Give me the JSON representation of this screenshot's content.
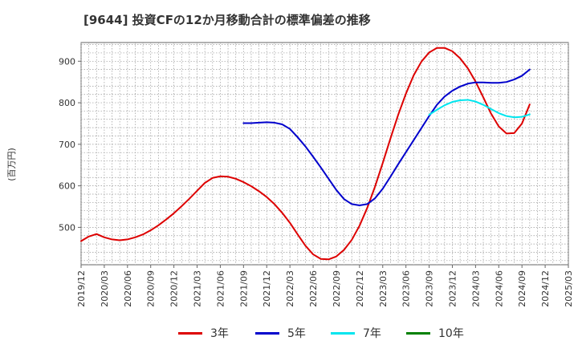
{
  "title": "[9644]  投資CFの12か月移動合計の標準偏差の推移",
  "chart_data": {
    "type": "line",
    "title": "[9644]  投資CFの12か月移動合計の標準偏差の推移",
    "ylabel": "(百万円)",
    "xlabel": "",
    "x_ticks": [
      "2019/12",
      "2020/03",
      "2020/06",
      "2020/09",
      "2020/12",
      "2021/03",
      "2021/06",
      "2021/09",
      "2021/12",
      "2022/03",
      "2022/06",
      "2022/09",
      "2022/12",
      "2023/03",
      "2023/06",
      "2023/09",
      "2023/12",
      "2024/03",
      "2024/06",
      "2024/09",
      "2024/12",
      "2025/03"
    ],
    "y_ticks": [
      500,
      600,
      700,
      800,
      900
    ],
    "ylim": [
      410,
      945
    ],
    "grid": true,
    "legend_position": "bottom",
    "series": [
      {
        "name": "3年",
        "color": "#dd0000",
        "points": [
          [
            "2019/12",
            467
          ],
          [
            "2020/01",
            478
          ],
          [
            "2020/02",
            484
          ],
          [
            "2020/03",
            476
          ],
          [
            "2020/04",
            471
          ],
          [
            "2020/05",
            469
          ],
          [
            "2020/06",
            471
          ],
          [
            "2020/07",
            476
          ],
          [
            "2020/08",
            483
          ],
          [
            "2020/09",
            493
          ],
          [
            "2020/10",
            505
          ],
          [
            "2020/11",
            519
          ],
          [
            "2020/12",
            534
          ],
          [
            "2021/01",
            551
          ],
          [
            "2021/02",
            569
          ],
          [
            "2021/03",
            588
          ],
          [
            "2021/04",
            607
          ],
          [
            "2021/05",
            619
          ],
          [
            "2021/06",
            623
          ],
          [
            "2021/07",
            622
          ],
          [
            "2021/08",
            617
          ],
          [
            "2021/09",
            609
          ],
          [
            "2021/10",
            599
          ],
          [
            "2021/11",
            587
          ],
          [
            "2021/12",
            573
          ],
          [
            "2022/01",
            556
          ],
          [
            "2022/02",
            535
          ],
          [
            "2022/03",
            511
          ],
          [
            "2022/04",
            483
          ],
          [
            "2022/05",
            456
          ],
          [
            "2022/06",
            435
          ],
          [
            "2022/07",
            424
          ],
          [
            "2022/08",
            423
          ],
          [
            "2022/09",
            430
          ],
          [
            "2022/10",
            446
          ],
          [
            "2022/11",
            470
          ],
          [
            "2022/12",
            504
          ],
          [
            "2023/01",
            547
          ],
          [
            "2023/02",
            598
          ],
          [
            "2023/03",
            655
          ],
          [
            "2023/04",
            714
          ],
          [
            "2023/05",
            771
          ],
          [
            "2023/06",
            822
          ],
          [
            "2023/07",
            866
          ],
          [
            "2023/08",
            899
          ],
          [
            "2023/09",
            921
          ],
          [
            "2023/10",
            932
          ],
          [
            "2023/11",
            932
          ],
          [
            "2023/12",
            924
          ],
          [
            "2024/01",
            907
          ],
          [
            "2024/02",
            883
          ],
          [
            "2024/03",
            851
          ],
          [
            "2024/04",
            813
          ],
          [
            "2024/05",
            774
          ],
          [
            "2024/06",
            743
          ],
          [
            "2024/07",
            726
          ],
          [
            "2024/08",
            727
          ],
          [
            "2024/09",
            750
          ],
          [
            "2024/10",
            796
          ]
        ]
      },
      {
        "name": "5年",
        "color": "#0000cc",
        "points": [
          [
            "2021/09",
            751
          ],
          [
            "2021/10",
            751
          ],
          [
            "2021/11",
            752
          ],
          [
            "2021/12",
            753
          ],
          [
            "2022/01",
            752
          ],
          [
            "2022/02",
            748
          ],
          [
            "2022/03",
            737
          ],
          [
            "2022/04",
            717
          ],
          [
            "2022/05",
            695
          ],
          [
            "2022/06",
            670
          ],
          [
            "2022/07",
            644
          ],
          [
            "2022/08",
            617
          ],
          [
            "2022/09",
            590
          ],
          [
            "2022/10",
            568
          ],
          [
            "2022/11",
            556
          ],
          [
            "2022/12",
            553
          ],
          [
            "2023/01",
            556
          ],
          [
            "2023/02",
            570
          ],
          [
            "2023/03",
            593
          ],
          [
            "2023/04",
            622
          ],
          [
            "2023/05",
            652
          ],
          [
            "2023/06",
            681
          ],
          [
            "2023/07",
            710
          ],
          [
            "2023/08",
            739
          ],
          [
            "2023/09",
            768
          ],
          [
            "2023/10",
            795
          ],
          [
            "2023/11",
            815
          ],
          [
            "2023/12",
            829
          ],
          [
            "2024/01",
            839
          ],
          [
            "2024/02",
            846
          ],
          [
            "2024/03",
            849
          ],
          [
            "2024/04",
            849
          ],
          [
            "2024/05",
            848
          ],
          [
            "2024/06",
            848
          ],
          [
            "2024/07",
            850
          ],
          [
            "2024/08",
            856
          ],
          [
            "2024/09",
            865
          ],
          [
            "2024/10",
            880
          ]
        ]
      },
      {
        "name": "7年",
        "color": "#00e5ee",
        "points": [
          [
            "2023/09",
            771
          ],
          [
            "2023/10",
            783
          ],
          [
            "2023/11",
            794
          ],
          [
            "2023/12",
            802
          ],
          [
            "2024/01",
            806
          ],
          [
            "2024/02",
            807
          ],
          [
            "2024/03",
            803
          ],
          [
            "2024/04",
            795
          ],
          [
            "2024/05",
            785
          ],
          [
            "2024/06",
            775
          ],
          [
            "2024/07",
            768
          ],
          [
            "2024/08",
            765
          ],
          [
            "2024/09",
            766
          ],
          [
            "2024/10",
            772
          ]
        ]
      },
      {
        "name": "10年",
        "color": "#008000",
        "points": []
      }
    ]
  }
}
